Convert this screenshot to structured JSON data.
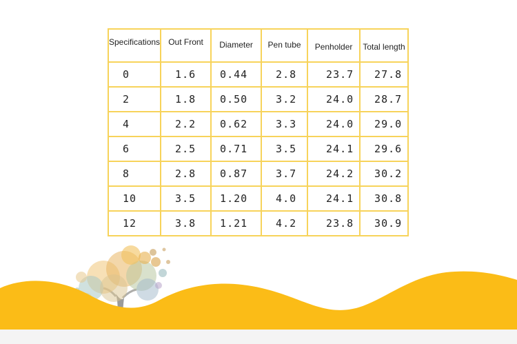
{
  "table": {
    "headers": [
      "Specifications",
      "Out Front",
      "Diameter",
      "Pen tube",
      "Penholder",
      "Total length"
    ],
    "rows": [
      [
        "0",
        "1.6",
        "0.44",
        "2.8",
        "23.7",
        "27.8"
      ],
      [
        "2",
        "1.8",
        "0.50",
        "3.2",
        "24.0",
        "28.7"
      ],
      [
        "4",
        "2.2",
        "0.62",
        "3.3",
        "24.0",
        "29.0"
      ],
      [
        "6",
        "2.5",
        "0.71",
        "3.5",
        "24.1",
        "29.6"
      ],
      [
        "8",
        "2.8",
        "0.87",
        "3.7",
        "24.2",
        "30.2"
      ],
      [
        "10",
        "3.5",
        "1.20",
        "4.0",
        "24.1",
        "30.8"
      ],
      [
        "12",
        "3.8",
        "1.21",
        "4.2",
        "23.8",
        "30.9"
      ]
    ]
  },
  "colors": {
    "table_border": "#f7d35a",
    "hills": "#fbbc17",
    "text": "#222222"
  },
  "decor": {
    "illustration": "watercolor-tree-icon"
  }
}
